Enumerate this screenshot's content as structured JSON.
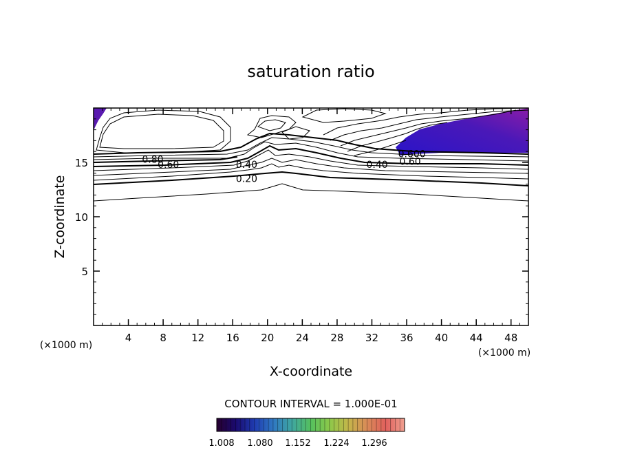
{
  "chart_data": {
    "type": "contour",
    "title": "saturation ratio",
    "xlabel": "X-coordinate",
    "ylabel": "Z-coordinate",
    "x_unit_label": "(×1000 m)",
    "y_unit_label": "(×1000 m)",
    "xlim": [
      0,
      50
    ],
    "ylim": [
      0,
      20
    ],
    "x_ticks": [
      "4",
      "8",
      "12",
      "16",
      "20",
      "24",
      "28",
      "32",
      "36",
      "40",
      "44",
      "48"
    ],
    "x_tick_values": [
      4,
      8,
      12,
      16,
      20,
      24,
      28,
      32,
      36,
      40,
      44,
      48
    ],
    "y_ticks": [
      "5",
      "10",
      "15"
    ],
    "y_tick_values": [
      5,
      10,
      15
    ],
    "contour_interval_text": "CONTOUR INTERVAL = 1.000E-01",
    "contour_labels": [
      {
        "text": "0.80",
        "x": 6.8,
        "z": 15.3
      },
      {
        "text": "0.60",
        "x": 8.6,
        "z": 14.8
      },
      {
        "text": "0.40",
        "x": 17.6,
        "z": 14.8
      },
      {
        "text": "0.20",
        "x": 17.6,
        "z": 13.5
      },
      {
        "text": "0.600",
        "x": 36.6,
        "z": 15.8
      },
      {
        "text": "0.60",
        "x": 36.4,
        "z": 15.1
      },
      {
        "text": "0.40",
        "x": 32.6,
        "z": 14.8
      }
    ],
    "colorbar": {
      "labels": [
        "1.008",
        "1.080",
        "1.152",
        "1.224",
        "1.296"
      ],
      "colors": [
        "#26002e",
        "#1a0a6e",
        "#1f3bb0",
        "#2f77c2",
        "#3fa6a0",
        "#55c05e",
        "#8cc84a",
        "#c4b64a",
        "#d98a58",
        "#e0605c",
        "#f0a090"
      ]
    },
    "shaded_regions_color": "#3a1ab0",
    "grid": false
  }
}
